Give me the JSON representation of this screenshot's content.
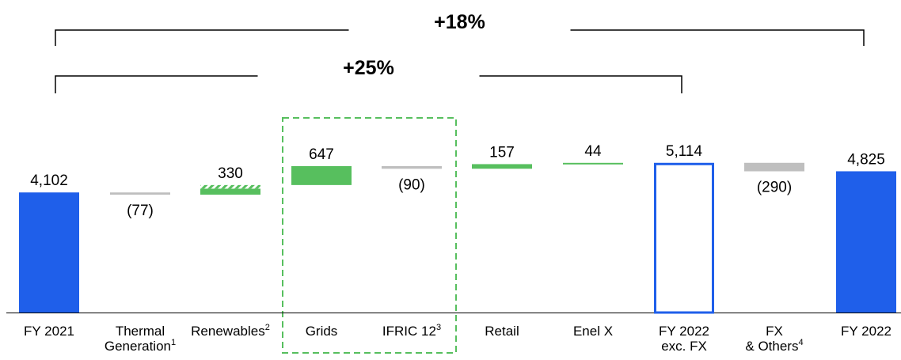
{
  "colors": {
    "blue": "#1F5FEA",
    "green": "#57BF5E",
    "grey": "#BFBFBF",
    "highlight_box": "#57BF5E"
  },
  "chart_data": {
    "type": "bar",
    "subtype": "waterfall",
    "title": "",
    "xlabel": "",
    "ylabel": "",
    "ylim": [
      0,
      5500
    ],
    "grid": false,
    "legend": "none",
    "categories": [
      "FY 2021",
      "Thermal Generation",
      "Renewables",
      "Grids",
      "IFRIC 12",
      "Retail",
      "Enel X",
      "FY 2022 exc. FX",
      "FX & Others",
      "FY 2022"
    ],
    "category_lines": [
      [
        "FY 2021"
      ],
      [
        "Thermal",
        "Generation"
      ],
      [
        "Renewables"
      ],
      [
        "Grids"
      ],
      [
        "IFRIC 12"
      ],
      [
        "Retail"
      ],
      [
        "Enel X"
      ],
      [
        "FY 2022",
        "exc. FX"
      ],
      [
        "FX",
        "& Others"
      ],
      [
        "FY 2022"
      ]
    ],
    "footnotes": [
      "",
      "1",
      "2",
      "",
      "3",
      "",
      "",
      "",
      "4",
      ""
    ],
    "values": [
      4102,
      -77,
      330,
      647,
      -90,
      157,
      44,
      5114,
      -290,
      4825
    ],
    "value_labels": [
      "4,102",
      "(77)",
      "330",
      "647",
      "(90)",
      "157",
      "44",
      "5,114",
      "(290)",
      "4,825"
    ],
    "kinds": [
      "total",
      "delta",
      "delta",
      "delta",
      "delta",
      "delta",
      "delta",
      "subtotal",
      "delta",
      "total"
    ],
    "highlighted_group": [
      "Grids",
      "IFRIC 12"
    ],
    "brackets": [
      {
        "label": "+18%",
        "from": "FY 2021",
        "to": "FY 2022"
      },
      {
        "label": "+25%",
        "from": "FY 2021",
        "to": "FY 2022 exc. FX"
      }
    ]
  }
}
